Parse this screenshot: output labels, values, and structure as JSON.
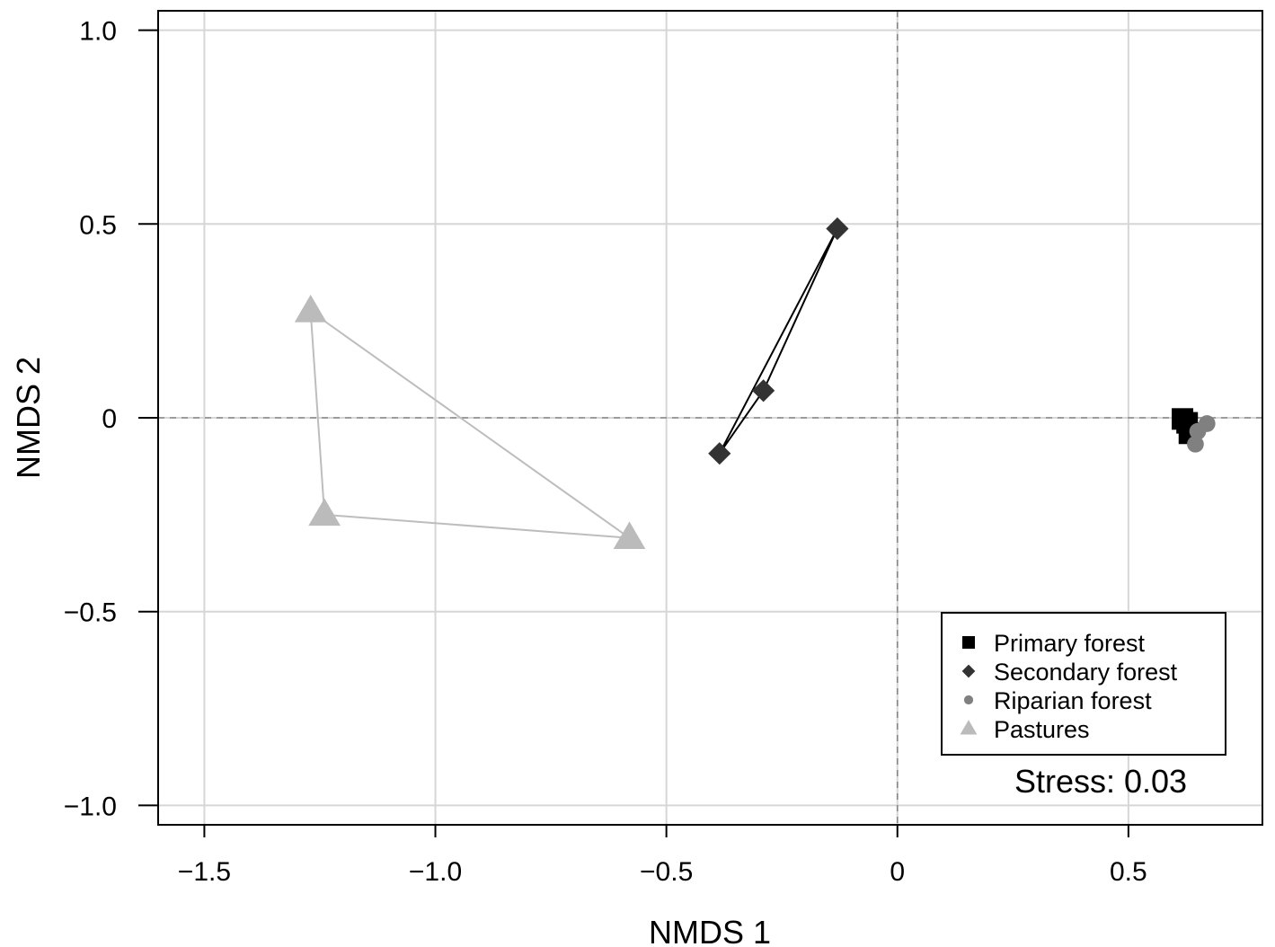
{
  "chart_data": {
    "type": "scatter",
    "xlabel": "NMDS 1",
    "ylabel": "NMDS 2",
    "xlim": [
      -1.6,
      0.79
    ],
    "ylim": [
      -1.05,
      1.05
    ],
    "x_ticks": [
      -1.5,
      -1.0,
      -0.5,
      0,
      0.5
    ],
    "x_tick_labels": [
      "−1.5",
      "−1.0",
      "−0.5",
      "0",
      "0.5"
    ],
    "y_ticks": [
      1.0,
      0.5,
      0,
      -0.5,
      -1.0
    ],
    "y_tick_labels": [
      "1.0",
      "0.5",
      "0",
      "−0.5",
      "−1.0"
    ],
    "grid": true,
    "reference_lines": {
      "x": 0,
      "y": 0,
      "style": "dashed"
    },
    "legend_position": "bottom-right",
    "annotation": "Stress: 0.03",
    "series": [
      {
        "name": "Primary forest",
        "marker": "square",
        "color": "#000000",
        "hull": true,
        "points": [
          [
            0.617,
            -0.003
          ],
          [
            0.627,
            -0.013
          ],
          [
            0.632,
            -0.04
          ]
        ]
      },
      {
        "name": "Secondary forest",
        "marker": "diamond",
        "color": "#333333",
        "hull": true,
        "points": [
          [
            -0.13,
            0.488
          ],
          [
            -0.29,
            0.07
          ],
          [
            -0.385,
            -0.092
          ]
        ]
      },
      {
        "name": "Riparian forest",
        "marker": "circle",
        "color": "#808080",
        "hull": true,
        "points": [
          [
            0.67,
            -0.015
          ],
          [
            0.65,
            -0.035
          ],
          [
            0.645,
            -0.068
          ]
        ]
      },
      {
        "name": "Pastures",
        "marker": "triangle",
        "color": "#bbbbbb",
        "hull": true,
        "points": [
          [
            -1.27,
            0.275
          ],
          [
            -1.24,
            -0.25
          ],
          [
            -0.58,
            -0.31
          ]
        ]
      }
    ]
  }
}
